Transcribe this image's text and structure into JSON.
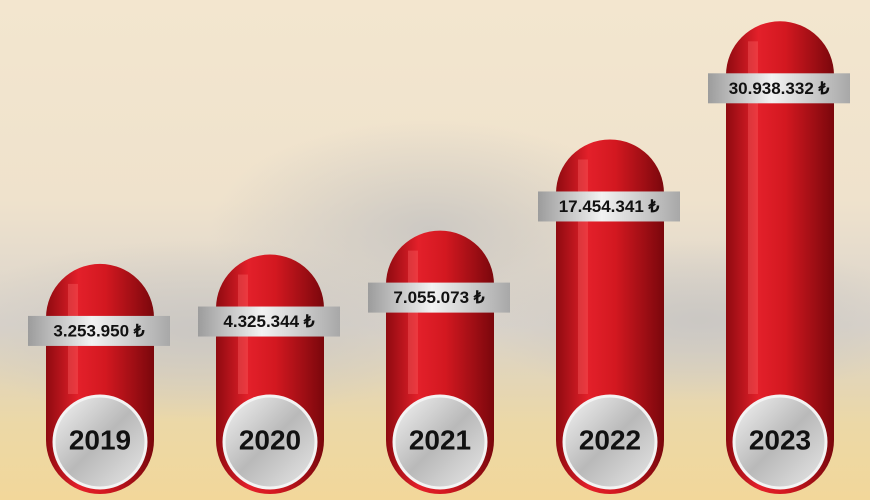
{
  "chart_data": {
    "type": "bar",
    "categories": [
      "2019",
      "2020",
      "2021",
      "2022",
      "2023"
    ],
    "values": [
      3253950,
      4325344,
      7055073,
      17454341,
      30938332
    ],
    "value_labels": [
      "3.253.950 ₺",
      "4.325.344 ₺",
      "7.055.073 ₺",
      "17.454.341 ₺",
      "30.938.332 ₺"
    ],
    "color": "#d8141c",
    "ylim": [
      -23000000,
      32000000
    ]
  }
}
